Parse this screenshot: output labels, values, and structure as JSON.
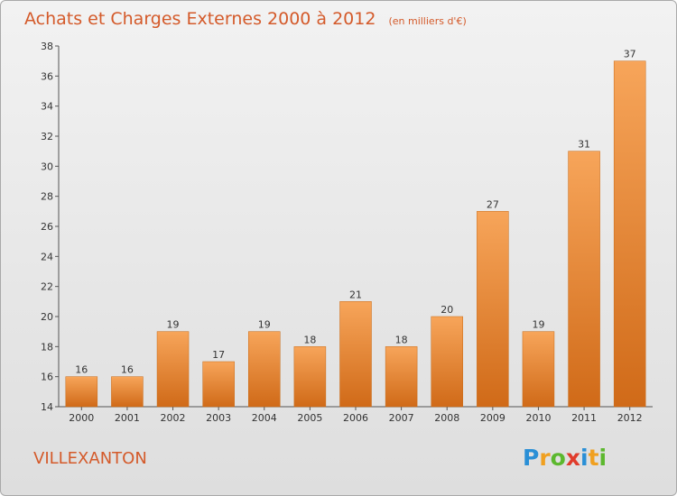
{
  "chart_data": {
    "type": "bar",
    "title": "Achats et Charges Externes 2000 à 2012",
    "subtitle": "(en milliers d'€)",
    "categories": [
      "2000",
      "2001",
      "2002",
      "2003",
      "2004",
      "2005",
      "2006",
      "2007",
      "2008",
      "2009",
      "2010",
      "2011",
      "2012"
    ],
    "values": [
      16,
      16,
      19,
      17,
      19,
      18,
      21,
      18,
      20,
      27,
      19,
      31,
      37
    ],
    "ylim": [
      14,
      38
    ],
    "yticks": [
      14,
      16,
      18,
      20,
      22,
      24,
      26,
      28,
      30,
      32,
      34,
      36,
      38
    ],
    "xlabel": "",
    "ylabel": "",
    "grid": false,
    "legend": "none",
    "bar_color": "#f08a30"
  },
  "place_name": "VILLEXANTON",
  "logo": {
    "letters": [
      "P",
      "r",
      "o",
      "x",
      "i",
      "t",
      "i"
    ],
    "colors": [
      "#2a8fd6",
      "#f0a020",
      "#5cb82e",
      "#e03c2c",
      "#2a8fd6",
      "#f0a020",
      "#5cb82e"
    ]
  },
  "colors": {
    "accent": "#d45a2a",
    "bar": "#f08a30",
    "bar_dark": "#c86a16"
  }
}
